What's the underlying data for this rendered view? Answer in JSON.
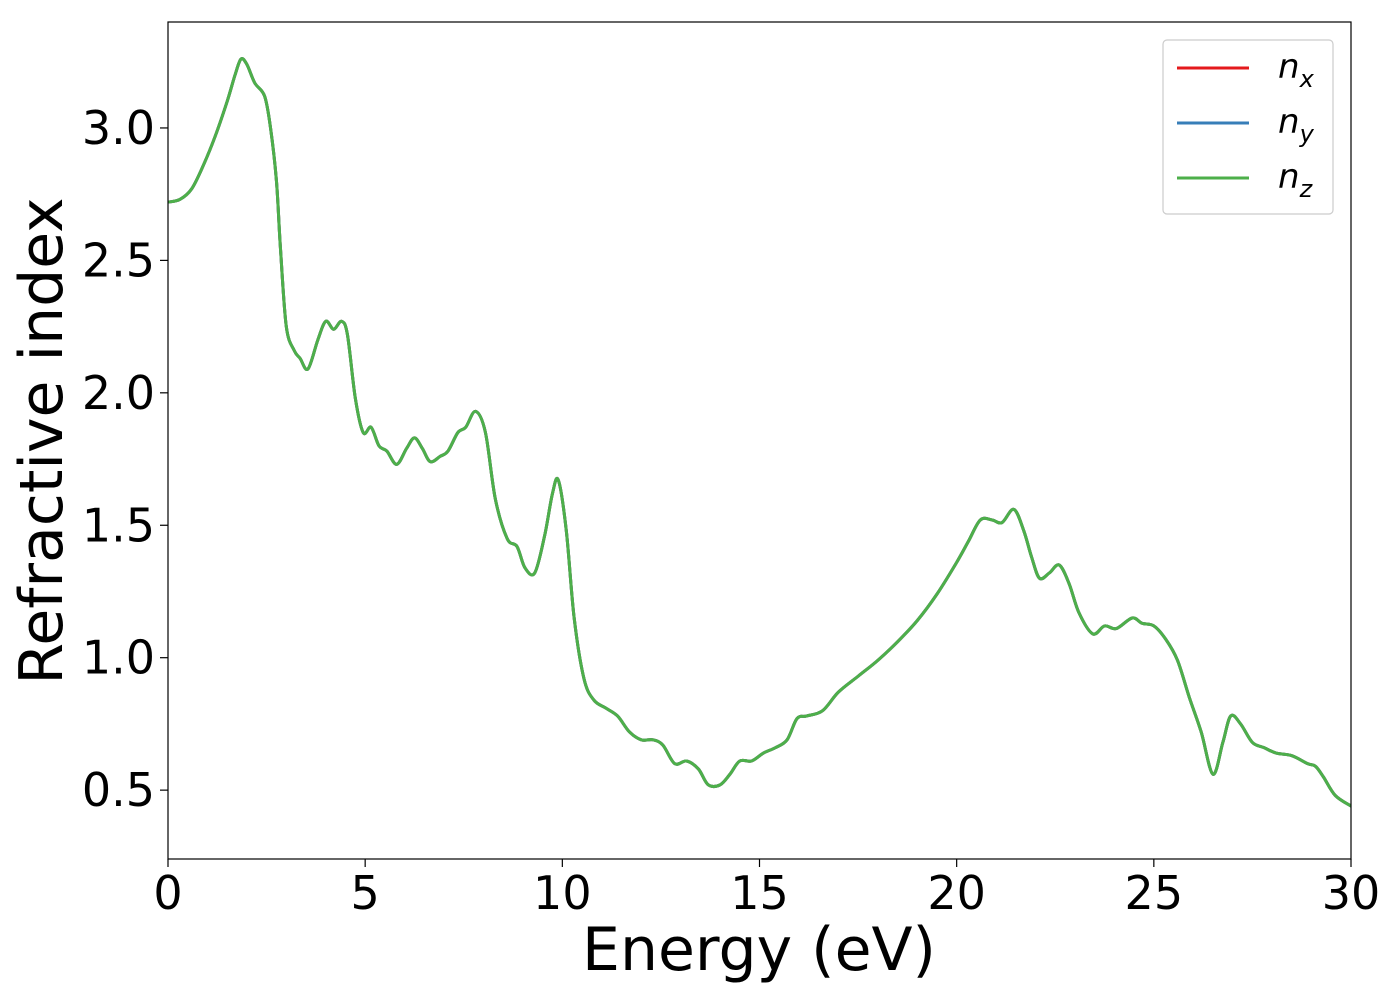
{
  "chart_data": {
    "type": "line",
    "title": "",
    "xlabel": "Energy (eV)",
    "ylabel": "Refractive index",
    "xlim": [
      0,
      30
    ],
    "ylim": [
      0.24,
      3.4
    ],
    "grid": false,
    "legend_position": "top-right",
    "xticks": [
      "0",
      "5",
      "10",
      "15",
      "20",
      "25",
      "30"
    ],
    "xtick_values": [
      0,
      5,
      10,
      15,
      20,
      25,
      30
    ],
    "yticks": [
      "0.5",
      "1.0",
      "1.5",
      "2.0",
      "2.5",
      "3.0"
    ],
    "ytick_values": [
      0.5,
      1.0,
      1.5,
      2.0,
      2.5,
      3.0
    ],
    "x": [
      0,
      0.3,
      0.6,
      0.9,
      1.2,
      1.5,
      1.7,
      1.85,
      2.0,
      2.2,
      2.45,
      2.6,
      2.75,
      2.85,
      3.0,
      3.2,
      3.35,
      3.55,
      3.8,
      4.0,
      4.2,
      4.4,
      4.55,
      4.75,
      4.95,
      5.15,
      5.35,
      5.55,
      5.8,
      6.05,
      6.25,
      6.45,
      6.65,
      6.9,
      7.1,
      7.35,
      7.55,
      7.8,
      8.05,
      8.3,
      8.6,
      8.85,
      9.05,
      9.3,
      9.55,
      9.75,
      9.9,
      10.1,
      10.3,
      10.55,
      10.8,
      11.1,
      11.4,
      11.7,
      12.0,
      12.3,
      12.55,
      12.85,
      13.15,
      13.45,
      13.7,
      14.0,
      14.25,
      14.5,
      14.8,
      15.1,
      15.4,
      15.7,
      15.95,
      16.2,
      16.6,
      17.0,
      17.5,
      18.0,
      18.5,
      19.0,
      19.5,
      20.0,
      20.3,
      20.6,
      20.9,
      21.15,
      21.45,
      21.7,
      21.9,
      22.1,
      22.35,
      22.6,
      22.85,
      23.1,
      23.45,
      23.75,
      24.05,
      24.45,
      24.7,
      25.0,
      25.3,
      25.6,
      25.9,
      26.2,
      26.5,
      26.75,
      26.95,
      27.2,
      27.5,
      27.8,
      28.1,
      28.5,
      28.9,
      29.1,
      29.3,
      29.6,
      30.0
    ],
    "series": [
      {
        "name": "n_x",
        "color": "#e41a1c",
        "values": [
          2.72,
          2.73,
          2.77,
          2.86,
          2.97,
          3.1,
          3.2,
          3.26,
          3.24,
          3.17,
          3.12,
          3.0,
          2.8,
          2.55,
          2.25,
          2.16,
          2.13,
          2.09,
          2.2,
          2.27,
          2.24,
          2.27,
          2.22,
          1.98,
          1.85,
          1.87,
          1.8,
          1.78,
          1.73,
          1.79,
          1.83,
          1.79,
          1.74,
          1.76,
          1.78,
          1.85,
          1.87,
          1.93,
          1.85,
          1.6,
          1.45,
          1.42,
          1.34,
          1.32,
          1.46,
          1.62,
          1.67,
          1.48,
          1.15,
          0.92,
          0.84,
          0.81,
          0.78,
          0.72,
          0.69,
          0.69,
          0.67,
          0.6,
          0.61,
          0.58,
          0.52,
          0.52,
          0.56,
          0.61,
          0.61,
          0.64,
          0.66,
          0.69,
          0.77,
          0.78,
          0.8,
          0.87,
          0.93,
          0.99,
          1.06,
          1.14,
          1.24,
          1.36,
          1.44,
          1.52,
          1.52,
          1.51,
          1.56,
          1.48,
          1.38,
          1.3,
          1.32,
          1.35,
          1.28,
          1.17,
          1.09,
          1.12,
          1.11,
          1.15,
          1.13,
          1.12,
          1.07,
          0.99,
          0.85,
          0.72,
          0.56,
          0.68,
          0.78,
          0.75,
          0.68,
          0.66,
          0.64,
          0.63,
          0.6,
          0.59,
          0.55,
          0.48,
          0.44
        ]
      },
      {
        "name": "n_y",
        "color": "#377eb8",
        "values": [
          2.72,
          2.73,
          2.77,
          2.86,
          2.97,
          3.1,
          3.2,
          3.26,
          3.24,
          3.17,
          3.12,
          3.0,
          2.8,
          2.55,
          2.25,
          2.16,
          2.13,
          2.09,
          2.2,
          2.27,
          2.24,
          2.27,
          2.22,
          1.98,
          1.85,
          1.87,
          1.8,
          1.78,
          1.73,
          1.79,
          1.83,
          1.79,
          1.74,
          1.76,
          1.78,
          1.85,
          1.87,
          1.93,
          1.85,
          1.6,
          1.45,
          1.42,
          1.34,
          1.32,
          1.46,
          1.62,
          1.67,
          1.48,
          1.15,
          0.92,
          0.84,
          0.81,
          0.78,
          0.72,
          0.69,
          0.69,
          0.67,
          0.6,
          0.61,
          0.58,
          0.52,
          0.52,
          0.56,
          0.61,
          0.61,
          0.64,
          0.66,
          0.69,
          0.77,
          0.78,
          0.8,
          0.87,
          0.93,
          0.99,
          1.06,
          1.14,
          1.24,
          1.36,
          1.44,
          1.52,
          1.52,
          1.51,
          1.56,
          1.48,
          1.38,
          1.3,
          1.32,
          1.35,
          1.28,
          1.17,
          1.09,
          1.12,
          1.11,
          1.15,
          1.13,
          1.12,
          1.07,
          0.99,
          0.85,
          0.72,
          0.56,
          0.68,
          0.78,
          0.75,
          0.68,
          0.66,
          0.64,
          0.63,
          0.6,
          0.59,
          0.55,
          0.48,
          0.44
        ]
      },
      {
        "name": "n_z",
        "color": "#4daf4a",
        "values": [
          2.72,
          2.73,
          2.77,
          2.86,
          2.97,
          3.1,
          3.2,
          3.26,
          3.24,
          3.17,
          3.12,
          3.0,
          2.8,
          2.55,
          2.25,
          2.16,
          2.13,
          2.09,
          2.2,
          2.27,
          2.24,
          2.27,
          2.22,
          1.98,
          1.85,
          1.87,
          1.8,
          1.78,
          1.73,
          1.79,
          1.83,
          1.79,
          1.74,
          1.76,
          1.78,
          1.85,
          1.87,
          1.93,
          1.85,
          1.6,
          1.45,
          1.42,
          1.34,
          1.32,
          1.46,
          1.62,
          1.67,
          1.48,
          1.15,
          0.92,
          0.84,
          0.81,
          0.78,
          0.72,
          0.69,
          0.69,
          0.67,
          0.6,
          0.61,
          0.58,
          0.52,
          0.52,
          0.56,
          0.61,
          0.61,
          0.64,
          0.66,
          0.69,
          0.77,
          0.78,
          0.8,
          0.87,
          0.93,
          0.99,
          1.06,
          1.14,
          1.24,
          1.36,
          1.44,
          1.52,
          1.52,
          1.51,
          1.56,
          1.48,
          1.38,
          1.3,
          1.32,
          1.35,
          1.28,
          1.17,
          1.09,
          1.12,
          1.11,
          1.15,
          1.13,
          1.12,
          1.07,
          0.99,
          0.85,
          0.72,
          0.56,
          0.68,
          0.78,
          0.75,
          0.68,
          0.66,
          0.64,
          0.63,
          0.6,
          0.59,
          0.55,
          0.48,
          0.44
        ]
      }
    ],
    "legend": [
      {
        "base": "n",
        "sub": "x",
        "series_index": 0
      },
      {
        "base": "n",
        "sub": "y",
        "series_index": 1
      },
      {
        "base": "n",
        "sub": "z",
        "series_index": 2
      }
    ]
  }
}
